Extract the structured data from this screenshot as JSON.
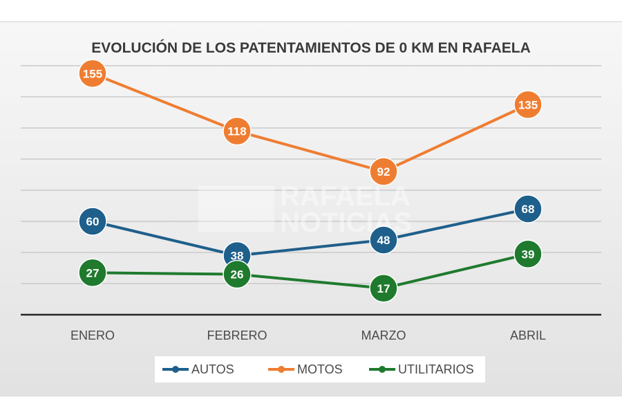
{
  "chart_data": {
    "type": "line",
    "title": "EVOLUCIÓN DE LOS PATENTAMIENTOS DE 0 KM EN RAFAELA",
    "categories": [
      "ENERO",
      "FEBRERO",
      "MARZO",
      "ABRIL"
    ],
    "series": [
      {
        "name": "AUTOS",
        "values": [
          60,
          38,
          48,
          68
        ],
        "color": "#1f5f8b"
      },
      {
        "name": "MOTOS",
        "values": [
          155,
          118,
          92,
          135
        ],
        "color": "#ef7d31"
      },
      {
        "name": "UTILITARIOS",
        "values": [
          27,
          26,
          17,
          39
        ],
        "color": "#1f7a2e"
      }
    ],
    "ylim": [
      0,
      160
    ],
    "grid": true,
    "legend": "bottom",
    "xlabel": "",
    "ylabel": ""
  },
  "watermark": {
    "line1": "RAFAELA",
    "line2": "NOTICIAS"
  }
}
